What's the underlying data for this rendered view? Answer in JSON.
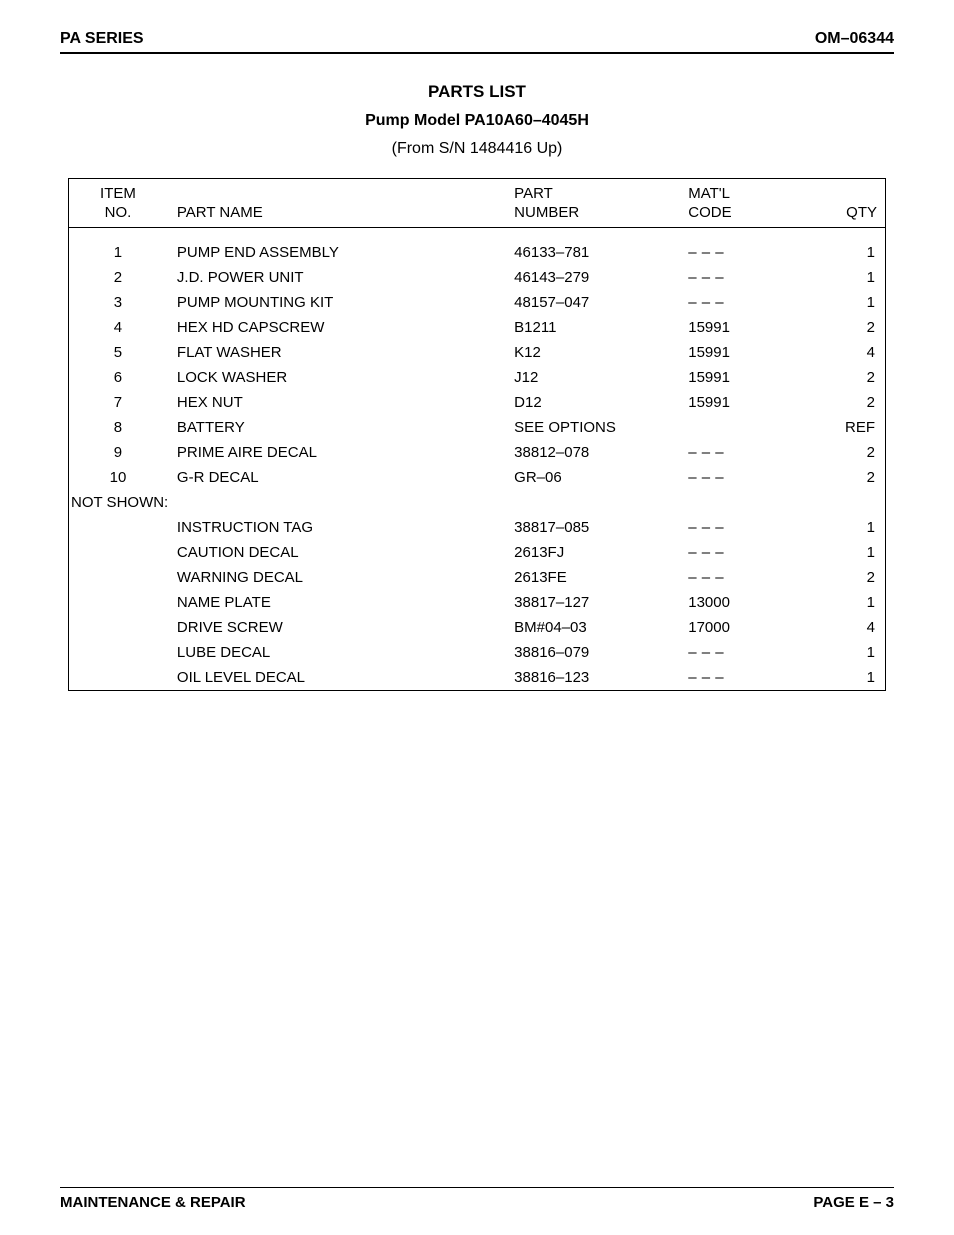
{
  "header": {
    "series": "PA SERIES",
    "doc_no": "OM–06344"
  },
  "title_block": {
    "title": "PARTS LIST",
    "model_line": "Pump Model PA10A60–4045H",
    "sn_line": "(From S/N 1484416 Up)"
  },
  "table": {
    "columns": {
      "item_no": "ITEM\nNO.",
      "part_name": "PART NAME",
      "part_number": "PART\nNUMBER",
      "matl_code": "MAT'L\nCODE",
      "qty": "QTY"
    },
    "rows": [
      {
        "item": "1",
        "name": "PUMP END ASSEMBLY",
        "part": "46133–781",
        "matl": "– – –",
        "qty": "1"
      },
      {
        "item": "2",
        "name": "J.D. POWER UNIT",
        "part": "46143–279",
        "matl": "– – –",
        "qty": "1"
      },
      {
        "item": "3",
        "name": "PUMP MOUNTING KIT",
        "part": "48157–047",
        "matl": "– – –",
        "qty": "1"
      },
      {
        "item": "4",
        "name": "HEX HD CAPSCREW",
        "part": "B1211",
        "matl": "15991",
        "qty": "2"
      },
      {
        "item": "5",
        "name": "FLAT WASHER",
        "part": "K12",
        "matl": "15991",
        "qty": "4"
      },
      {
        "item": "6",
        "name": "LOCK WASHER",
        "part": "J12",
        "matl": "15991",
        "qty": "2"
      },
      {
        "item": "7",
        "name": "HEX NUT",
        "part": "D12",
        "matl": "15991",
        "qty": "2"
      },
      {
        "item": "8",
        "name": "BATTERY",
        "part": "SEE OPTIONS",
        "matl": "",
        "qty": "REF"
      },
      {
        "item": "9",
        "name": "PRIME AIRE DECAL",
        "part": "38812–078",
        "matl": "– – –",
        "qty": "2"
      },
      {
        "item": "10",
        "name": "G-R DECAL",
        "part": "GR–06",
        "matl": "– – –",
        "qty": "2"
      }
    ],
    "section_label": "NOT SHOWN:",
    "not_shown_rows": [
      {
        "item": "",
        "name": "INSTRUCTION TAG",
        "part": "38817–085",
        "matl": "– – –",
        "qty": "1"
      },
      {
        "item": "",
        "name": "CAUTION DECAL",
        "part": "2613FJ",
        "matl": "– – –",
        "qty": "1"
      },
      {
        "item": "",
        "name": "WARNING DECAL",
        "part": "2613FE",
        "matl": "– – –",
        "qty": "2"
      },
      {
        "item": "",
        "name": "NAME PLATE",
        "part": "38817–127",
        "matl": "13000",
        "qty": "1"
      },
      {
        "item": "",
        "name": "DRIVE SCREW",
        "part": "BM#04–03",
        "matl": "17000",
        "qty": "4"
      },
      {
        "item": "",
        "name": "LUBE DECAL",
        "part": "38816–079",
        "matl": "– – –",
        "qty": "1"
      },
      {
        "item": "",
        "name": "OIL LEVEL DECAL",
        "part": "38816–123",
        "matl": "– – –",
        "qty": "1"
      }
    ]
  },
  "footer": {
    "left": "MAINTENANCE & REPAIR",
    "right": "PAGE E – 3"
  }
}
